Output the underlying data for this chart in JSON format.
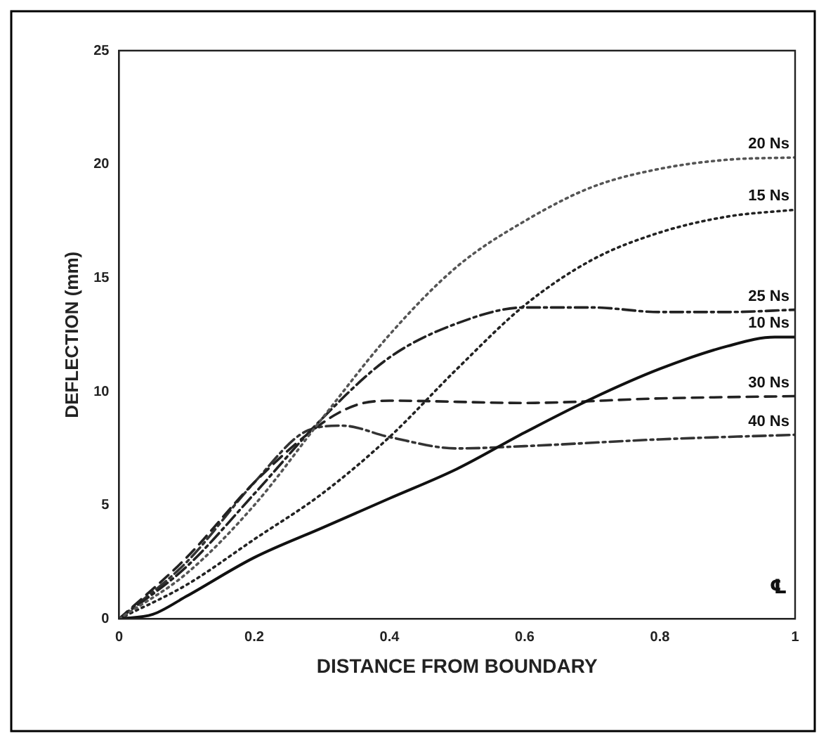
{
  "chart_data": {
    "type": "line",
    "xlabel": "DISTANCE FROM BOUNDARY",
    "ylabel": "DEFLECTION (mm)",
    "xlim": [
      0,
      1
    ],
    "xticks": [
      0,
      0.2,
      0.4,
      0.6,
      0.8,
      1
    ],
    "ylim": [
      0,
      25
    ],
    "yticks": [
      0,
      5,
      10,
      15,
      20,
      25
    ],
    "grid": false,
    "legend": false,
    "marker": "none",
    "annotations": [
      "℄"
    ],
    "series": [
      {
        "name": "20 Ns",
        "color": "#555555",
        "line_style": "dotted",
        "x": [
          0,
          0.1,
          0.2,
          0.3,
          0.4,
          0.5,
          0.6,
          0.7,
          0.8,
          0.9,
          1
        ],
        "values": [
          0,
          2,
          5,
          8.8,
          12.5,
          15.5,
          17.5,
          19,
          19.8,
          20.2,
          20.3
        ]
      },
      {
        "name": "15 Ns",
        "color": "#222222",
        "line_style": "dotted",
        "x": [
          0,
          0.1,
          0.2,
          0.3,
          0.4,
          0.5,
          0.6,
          0.7,
          0.8,
          0.9,
          1
        ],
        "values": [
          0,
          1.5,
          3.5,
          5.5,
          8,
          11,
          13.8,
          15.8,
          17,
          17.7,
          18
        ]
      },
      {
        "name": "25 Ns",
        "color": "#222222",
        "line_style": "dashdot",
        "x": [
          0,
          0.1,
          0.2,
          0.3,
          0.4,
          0.5,
          0.6,
          0.7,
          0.8,
          0.9,
          1
        ],
        "values": [
          0,
          2.3,
          5.5,
          8.8,
          11.5,
          13,
          13.7,
          13.7,
          13.5,
          13.5,
          13.6
        ]
      },
      {
        "name": "10 Ns",
        "color": "#111111",
        "line_style": "solid",
        "x": [
          0,
          0.05,
          0.1,
          0.2,
          0.3,
          0.4,
          0.5,
          0.6,
          0.7,
          0.8,
          0.9,
          0.97,
          1
        ],
        "values": [
          0,
          0.2,
          1,
          2.7,
          4,
          5.3,
          6.6,
          8.2,
          9.7,
          11,
          12,
          12.4,
          12.4
        ]
      },
      {
        "name": "30 Ns",
        "color": "#222222",
        "line_style": "dashed",
        "x": [
          0,
          0.1,
          0.2,
          0.3,
          0.35,
          0.4,
          0.6,
          0.8,
          1
        ],
        "values": [
          0,
          2.7,
          6,
          8.6,
          9.4,
          9.6,
          9.5,
          9.7,
          9.8
        ]
      },
      {
        "name": "40 Ns",
        "color": "#333333",
        "line_style": "dashdot",
        "x": [
          0,
          0.1,
          0.2,
          0.28,
          0.33,
          0.4,
          0.5,
          0.6,
          0.8,
          1
        ],
        "values": [
          0,
          2.5,
          6,
          8.3,
          8.5,
          8,
          7.5,
          7.6,
          7.9,
          8.1
        ]
      }
    ]
  }
}
